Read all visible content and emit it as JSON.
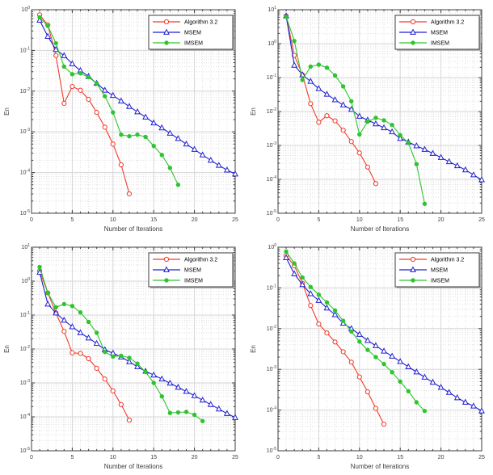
{
  "colors": {
    "algorithm32": "#f13a2a",
    "msem": "#1f1fd1",
    "imsem": "#2ec42e",
    "grid_major": "#d6d6d6",
    "grid_minor": "#dfdfdf",
    "axis": "#3c3c3c",
    "tick_label": "#3c3c3c",
    "legend_border": "#3c3c3c",
    "legend_shadow": "#b3b3b3"
  },
  "legend": {
    "position": "top-right",
    "items": [
      {
        "label": "Algorithm 3.2",
        "series_key": "algorithm32",
        "marker": "circle-open"
      },
      {
        "label": "MSEM",
        "series_key": "msem",
        "marker": "triangle-open"
      },
      {
        "label": "IMSEM",
        "series_key": "imsem",
        "marker": "circle-filled"
      }
    ]
  },
  "chart_data": [
    {
      "type": "line",
      "position": "top-left",
      "xlabel": "Number of Iterations",
      "ylabel": "En",
      "xlim": [
        0,
        25
      ],
      "xticks": [
        0,
        5,
        10,
        15,
        20,
        25
      ],
      "ylog": true,
      "ylim": [
        1e-05,
        1
      ],
      "yticks": [
        "10^0",
        "10^-1",
        "10^-2",
        "10^-3",
        "10^-4",
        "10^-5"
      ],
      "grid": "major+minor",
      "legend_position": "top-right",
      "series": [
        {
          "name": "Algorithm 3.2",
          "series_key": "algorithm32",
          "marker": "circle-open",
          "x": [
            1,
            2,
            3,
            4,
            5,
            6,
            7,
            8,
            9,
            10,
            11,
            12
          ],
          "y": [
            0.75,
            0.42,
            0.075,
            0.005,
            0.013,
            0.0105,
            0.0063,
            0.003,
            0.0013,
            0.0005,
            0.000155,
            3e-05
          ]
        },
        {
          "name": "MSEM",
          "series_key": "msem",
          "marker": "triangle-open",
          "x": [
            1,
            2,
            3,
            4,
            5,
            6,
            7,
            8,
            9,
            10,
            11,
            12,
            13,
            14,
            15,
            16,
            17,
            18,
            19,
            20,
            21,
            22,
            23,
            24,
            25
          ],
          "y": [
            0.55,
            0.22,
            0.105,
            0.074,
            0.047,
            0.032,
            0.023,
            0.0155,
            0.0105,
            0.0078,
            0.0057,
            0.0042,
            0.0031,
            0.0023,
            0.00165,
            0.00125,
            0.00092,
            0.00068,
            0.0005,
            0.00037,
            0.00027,
            0.0002,
            0.00015,
            0.000115,
            9.2e-05
          ]
        },
        {
          "name": "IMSEM",
          "series_key": "imsem",
          "marker": "circle-filled",
          "x": [
            1,
            2,
            3,
            4,
            5,
            6,
            7,
            8,
            9,
            10,
            11,
            12,
            13,
            14,
            15,
            16,
            17,
            18
          ],
          "y": [
            0.65,
            0.4,
            0.15,
            0.04,
            0.026,
            0.0275,
            0.022,
            0.0155,
            0.0075,
            0.003,
            0.00085,
            0.00078,
            0.00085,
            0.00075,
            0.00045,
            0.00027,
            0.00013,
            5e-05
          ]
        }
      ]
    },
    {
      "type": "line",
      "position": "top-right",
      "xlabel": "Number of Iterations",
      "ylabel": "En",
      "xlim": [
        0,
        25
      ],
      "xticks": [
        0,
        5,
        10,
        15,
        20,
        25
      ],
      "ylog": true,
      "ylim": [
        1e-05,
        10
      ],
      "yticks": [
        "10^1",
        "10^0",
        "10^-1",
        "10^-2",
        "10^-3",
        "10^-4",
        "10^-5"
      ],
      "grid": "major+minor",
      "legend_position": "top-right",
      "series": [
        {
          "name": "Algorithm 3.2",
          "series_key": "algorithm32",
          "marker": "circle-open",
          "x": [
            1,
            2,
            3,
            4,
            5,
            6,
            7,
            8,
            9,
            10,
            11,
            12
          ],
          "y": [
            6.5,
            0.45,
            0.12,
            0.017,
            0.0048,
            0.0075,
            0.0053,
            0.0028,
            0.0013,
            0.0006,
            0.00023,
            7.5e-05
          ]
        },
        {
          "name": "MSEM",
          "series_key": "msem",
          "marker": "triangle-open",
          "x": [
            1,
            2,
            3,
            4,
            5,
            6,
            7,
            8,
            9,
            10,
            11,
            12,
            13,
            14,
            15,
            16,
            17,
            18,
            19,
            20,
            21,
            22,
            23,
            24,
            25
          ],
          "y": [
            6.5,
            0.23,
            0.12,
            0.077,
            0.047,
            0.032,
            0.022,
            0.0155,
            0.0115,
            0.0072,
            0.0056,
            0.0043,
            0.0033,
            0.0025,
            0.0016,
            0.00125,
            0.00097,
            0.00076,
            0.00058,
            0.00044,
            0.00033,
            0.00025,
            0.00019,
            0.000135,
            9.7e-05
          ]
        },
        {
          "name": "IMSEM",
          "series_key": "imsem",
          "marker": "circle-filled",
          "x": [
            1,
            2,
            3,
            4,
            5,
            6,
            7,
            8,
            9,
            10,
            11,
            12,
            13,
            14,
            15,
            16,
            17,
            18
          ],
          "y": [
            6.2,
            1.2,
            0.085,
            0.21,
            0.24,
            0.195,
            0.115,
            0.055,
            0.02,
            0.0021,
            0.005,
            0.0065,
            0.0055,
            0.004,
            0.002,
            0.0012,
            0.00028,
            1.9e-05
          ]
        }
      ]
    },
    {
      "type": "line",
      "position": "bottom-left",
      "xlabel": "Number of Iterations",
      "ylabel": "En",
      "xlim": [
        0,
        25
      ],
      "xticks": [
        0,
        5,
        10,
        15,
        20,
        25
      ],
      "ylog": true,
      "ylim": [
        1e-05,
        10
      ],
      "yticks": [
        "10^1",
        "10^0",
        "10^-1",
        "10^-2",
        "10^-3",
        "10^-4",
        "10^-5"
      ],
      "grid": "major+minor",
      "legend_position": "top-right",
      "series": [
        {
          "name": "Algorithm 3.2",
          "series_key": "algorithm32",
          "marker": "circle-open",
          "x": [
            1,
            2,
            3,
            4,
            5,
            6,
            7,
            8,
            9,
            10,
            11,
            12
          ],
          "y": [
            2.0,
            0.45,
            0.115,
            0.033,
            0.0077,
            0.0074,
            0.0052,
            0.0027,
            0.0013,
            0.00058,
            0.00023,
            8e-05
          ]
        },
        {
          "name": "MSEM",
          "series_key": "msem",
          "marker": "triangle-open",
          "x": [
            1,
            2,
            3,
            4,
            5,
            6,
            7,
            8,
            9,
            10,
            11,
            12,
            13,
            14,
            15,
            16,
            17,
            18,
            19,
            20,
            21,
            22,
            23,
            24,
            25
          ],
          "y": [
            1.8,
            0.21,
            0.115,
            0.07,
            0.045,
            0.03,
            0.021,
            0.0145,
            0.0095,
            0.0075,
            0.0058,
            0.0042,
            0.003,
            0.0022,
            0.0017,
            0.0013,
            0.00098,
            0.00074,
            0.00056,
            0.00042,
            0.00031,
            0.00023,
            0.00017,
            0.000125,
            9.5e-05
          ]
        },
        {
          "name": "IMSEM",
          "series_key": "imsem",
          "marker": "circle-filled",
          "x": [
            1,
            2,
            3,
            4,
            5,
            6,
            7,
            8,
            9,
            10,
            11,
            12,
            13,
            14,
            15,
            16,
            17,
            18,
            19,
            20,
            21
          ],
          "y": [
            2.6,
            0.45,
            0.17,
            0.21,
            0.185,
            0.12,
            0.063,
            0.03,
            0.0082,
            0.006,
            0.0063,
            0.0055,
            0.0037,
            0.0021,
            0.001,
            0.0004,
            0.00013,
            0.000135,
            0.00014,
            0.000115,
            7.5e-05
          ]
        }
      ]
    },
    {
      "type": "line",
      "position": "bottom-right",
      "xlabel": "Number of Iterations",
      "ylabel": "En",
      "xlim": [
        0,
        25
      ],
      "xticks": [
        0,
        5,
        10,
        15,
        20,
        25
      ],
      "ylog": true,
      "ylim": [
        1e-05,
        1
      ],
      "yticks": [
        "10^0",
        "10^-1",
        "10^-2",
        "10^-3",
        "10^-4",
        "10^-5"
      ],
      "grid": "major+minor",
      "legend_position": "top-right",
      "series": [
        {
          "name": "Algorithm 3.2",
          "series_key": "algorithm32",
          "marker": "circle-open",
          "x": [
            1,
            2,
            3,
            4,
            5,
            6,
            7,
            8,
            9,
            10,
            11,
            12,
            13
          ],
          "y": [
            0.62,
            0.35,
            0.13,
            0.037,
            0.013,
            0.0078,
            0.0047,
            0.0027,
            0.0015,
            0.00065,
            0.00028,
            0.00011,
            4.5e-05
          ]
        },
        {
          "name": "MSEM",
          "series_key": "msem",
          "marker": "triangle-open",
          "x": [
            1,
            2,
            3,
            4,
            5,
            6,
            7,
            8,
            9,
            10,
            11,
            12,
            13,
            14,
            15,
            16,
            17,
            18,
            19,
            20,
            21,
            22,
            23,
            24,
            25
          ],
          "y": [
            0.55,
            0.22,
            0.12,
            0.072,
            0.049,
            0.032,
            0.022,
            0.0135,
            0.01,
            0.0072,
            0.0051,
            0.0038,
            0.0028,
            0.0021,
            0.00155,
            0.00115,
            0.00086,
            0.00064,
            0.00048,
            0.00036,
            0.00027,
            0.0002,
            0.000155,
            0.000125,
            9.5e-05
          ]
        },
        {
          "name": "IMSEM",
          "series_key": "imsem",
          "marker": "circle-filled",
          "x": [
            1,
            2,
            3,
            4,
            5,
            6,
            7,
            8,
            9,
            10,
            11,
            12,
            13,
            14,
            15,
            16,
            17,
            18
          ],
          "y": [
            0.78,
            0.4,
            0.18,
            0.105,
            0.068,
            0.044,
            0.028,
            0.0155,
            0.0085,
            0.0048,
            0.003,
            0.002,
            0.00135,
            0.00085,
            0.0005,
            0.00029,
            0.000155,
            9.5e-05
          ]
        }
      ]
    }
  ]
}
